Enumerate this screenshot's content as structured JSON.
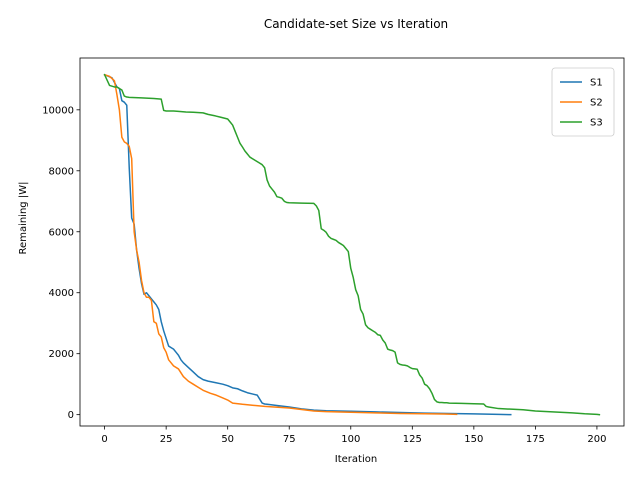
{
  "chart_data": {
    "type": "line",
    "title": "Candidate-set Size vs Iteration",
    "xlabel": "Iteration",
    "ylabel": "Remaining |W|",
    "xlim": [
      -10,
      211
    ],
    "ylim": [
      -372,
      11700
    ],
    "xticks": [
      0,
      25,
      50,
      75,
      100,
      125,
      150,
      175,
      200
    ],
    "yticks": [
      0,
      2000,
      4000,
      6000,
      8000,
      10000
    ],
    "grid": false,
    "legend_position": "top-right",
    "colors": {
      "S1": "#1f77b4",
      "S2": "#ff7f0e",
      "S3": "#2ca02c"
    },
    "series": [
      {
        "name": "S1",
        "x": [
          0,
          3,
          5,
          6,
          7,
          8,
          9,
          10,
          11,
          12,
          13,
          14,
          15,
          16,
          17,
          18,
          19,
          20,
          21,
          22,
          23,
          24,
          25,
          26,
          27,
          28,
          29,
          30,
          31,
          32,
          34,
          36,
          38,
          40,
          42,
          45,
          48,
          50,
          52,
          54,
          56,
          58,
          60,
          62,
          64,
          65,
          66,
          70,
          75,
          80,
          85,
          90,
          100,
          110,
          120,
          130,
          140,
          150,
          160,
          165
        ],
        "values": [
          11150,
          11050,
          10750,
          10700,
          10300,
          10250,
          10150,
          8100,
          6450,
          6250,
          5400,
          4800,
          4300,
          3950,
          4000,
          3900,
          3800,
          3700,
          3600,
          3450,
          3050,
          2750,
          2500,
          2250,
          2200,
          2150,
          2050,
          1950,
          1800,
          1700,
          1550,
          1400,
          1250,
          1150,
          1100,
          1050,
          1000,
          950,
          880,
          850,
          780,
          720,
          680,
          640,
          380,
          350,
          340,
          300,
          250,
          190,
          150,
          130,
          110,
          90,
          70,
          50,
          40,
          25,
          10,
          0
        ]
      },
      {
        "name": "S2",
        "x": [
          0,
          2,
          4,
          5,
          6,
          7,
          8,
          9,
          10,
          11,
          12,
          13,
          14,
          15,
          16,
          17,
          18,
          19,
          20,
          21,
          22,
          23,
          24,
          25,
          26,
          27,
          28,
          30,
          32,
          34,
          36,
          38,
          40,
          43,
          45,
          48,
          50,
          52,
          56,
          60,
          65,
          75,
          80,
          85,
          90,
          100,
          110,
          120,
          130,
          138,
          143
        ],
        "values": [
          11150,
          11100,
          10950,
          10500,
          10000,
          9100,
          8950,
          8900,
          8800,
          8400,
          6000,
          5400,
          5000,
          4400,
          4000,
          3850,
          3850,
          3750,
          3050,
          3000,
          2650,
          2550,
          2200,
          2050,
          1800,
          1700,
          1600,
          1500,
          1250,
          1100,
          1000,
          900,
          800,
          700,
          650,
          550,
          480,
          380,
          340,
          310,
          270,
          220,
          170,
          120,
          100,
          80,
          60,
          40,
          30,
          20,
          10
        ]
      },
      {
        "name": "S3",
        "x": [
          0,
          2,
          4,
          5,
          6,
          7,
          8,
          9,
          10,
          15,
          20,
          23,
          24,
          25,
          28,
          30,
          33,
          36,
          40,
          42,
          45,
          47,
          48,
          49,
          50,
          51,
          52,
          53,
          54,
          55,
          56,
          57,
          58,
          59,
          60,
          61,
          62,
          63,
          64,
          65,
          66,
          67,
          68,
          69,
          70,
          71,
          72,
          73,
          74,
          75,
          80,
          85,
          86,
          87,
          88,
          89,
          90,
          91,
          92,
          93,
          94,
          95,
          96,
          97,
          98,
          99,
          100,
          101,
          102,
          103,
          104,
          105,
          106,
          107,
          108,
          109,
          110,
          111,
          112,
          113,
          114,
          115,
          116,
          117,
          118,
          119,
          120,
          121,
          122,
          123,
          124,
          125,
          126,
          127,
          128,
          129,
          130,
          131,
          132,
          133,
          134,
          135,
          136,
          137,
          138,
          139,
          140,
          145,
          150,
          154,
          155,
          156,
          160,
          165,
          170,
          175,
          180,
          185,
          190,
          195,
          200,
          201
        ],
        "values": [
          11150,
          10800,
          10750,
          10750,
          10700,
          10650,
          10450,
          10420,
          10410,
          10390,
          10370,
          10350,
          9980,
          9960,
          9960,
          9950,
          9930,
          9920,
          9900,
          9850,
          9800,
          9760,
          9740,
          9720,
          9700,
          9600,
          9500,
          9300,
          9100,
          8900,
          8780,
          8650,
          8550,
          8450,
          8400,
          8350,
          8300,
          8250,
          8200,
          8100,
          7700,
          7500,
          7400,
          7300,
          7150,
          7130,
          7100,
          7000,
          6960,
          6950,
          6940,
          6930,
          6850,
          6700,
          6100,
          6050,
          5980,
          5850,
          5780,
          5750,
          5720,
          5650,
          5600,
          5550,
          5450,
          5350,
          4800,
          4500,
          4100,
          3900,
          3450,
          3300,
          2950,
          2850,
          2800,
          2750,
          2700,
          2620,
          2600,
          2450,
          2350,
          2150,
          2120,
          2100,
          2050,
          1700,
          1650,
          1630,
          1620,
          1600,
          1550,
          1510,
          1500,
          1490,
          1300,
          1200,
          1000,
          950,
          850,
          700,
          500,
          420,
          400,
          400,
          390,
          390,
          380,
          370,
          360,
          350,
          270,
          250,
          200,
          180,
          160,
          120,
          100,
          80,
          60,
          30,
          10,
          0
        ]
      }
    ]
  }
}
